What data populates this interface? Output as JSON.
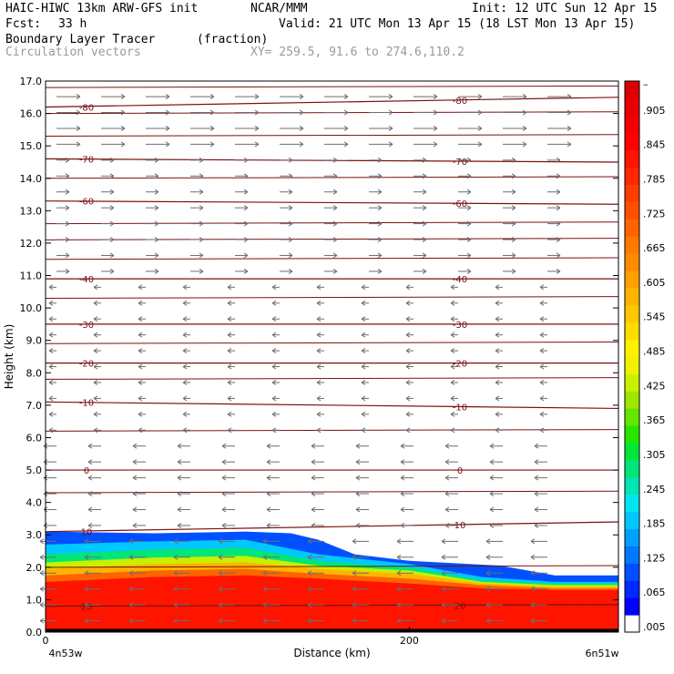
{
  "header": {
    "model_title": "HAIC-HIWC 13km ARW-GFS init",
    "org": "NCAR/MMM",
    "init": "Init: 12 UTC Sun 12 Apr 15",
    "fcst_label": "Fcst:",
    "fcst_value": "33 h",
    "valid": "Valid: 21 UTC Mon 13 Apr 15 (18 LST Mon 13 Apr 15)",
    "field_name": "Boundary Layer Tracer",
    "field_unit": "(fraction)",
    "vector_name": "Circulation vectors",
    "xy_range": "XY= 259.5, 91.6 to 274.6,110.2"
  },
  "chart_data": {
    "type": "heatmap",
    "xlabel": "Distance (km)",
    "ylabel": "Height (km)",
    "xlim": [
      0,
      315
    ],
    "ylim": [
      0,
      17
    ],
    "x_ticks": [
      0,
      200
    ],
    "x_tick_labels": [
      "0",
      "200"
    ],
    "x_end_labels": [
      "4n53w",
      "6n51w"
    ],
    "y_ticks": [
      0,
      1,
      2,
      3,
      4,
      5,
      6,
      7,
      8,
      9,
      10,
      11,
      12,
      13,
      14,
      15,
      16,
      17
    ],
    "y_tick_labels": [
      "0.0",
      "1.0",
      "2.0",
      "3.0",
      "4.0",
      "5.0",
      "6.0",
      "7.0",
      "8.0",
      "9.0",
      "10.0",
      "11.0",
      "12.0",
      "13.0",
      "14.0",
      "15.0",
      "16.0",
      "17.0"
    ],
    "colorbar": {
      "levels": [
        0.005,
        0.035,
        0.065,
        0.095,
        0.125,
        0.155,
        0.185,
        0.215,
        0.245,
        0.275,
        0.305,
        0.335,
        0.365,
        0.395,
        0.425,
        0.455,
        0.485,
        0.515,
        0.545,
        0.575,
        0.605,
        0.635,
        0.665,
        0.695,
        0.725,
        0.755,
        0.785,
        0.815,
        0.845,
        0.875,
        0.905,
        0.935,
        0.965
      ],
      "labels": [
        ".005",
        ".065",
        ".125",
        ".185",
        ".245",
        ".305",
        ".365",
        ".425",
        ".485",
        ".545",
        ".605",
        ".665",
        ".725",
        ".785",
        ".845",
        ".905",
        "–"
      ],
      "colors": [
        "#ffffff",
        "#0000ff",
        "#0028ff",
        "#0050ff",
        "#0078ff",
        "#00a0ff",
        "#00c8ff",
        "#00e6f0",
        "#00e6b4",
        "#00e678",
        "#00e63c",
        "#28e600",
        "#64e600",
        "#a0e600",
        "#c8f000",
        "#f0f000",
        "#fff000",
        "#ffdc00",
        "#ffc800",
        "#ffb400",
        "#ffa000",
        "#ff8c00",
        "#ff7800",
        "#ff6400",
        "#ff5000",
        "#ff3c00",
        "#ff2800",
        "#ff1400",
        "#ff0000",
        "#f00000",
        "#e60000",
        "#dc0000"
      ]
    },
    "tracer_bands": [
      {
        "min": 0.9,
        "color": "#ff1400",
        "top": [
          [
            0,
            1.55
          ],
          [
            60,
            1.7
          ],
          [
            110,
            1.75
          ],
          [
            150,
            1.65
          ],
          [
            200,
            1.5
          ],
          [
            240,
            1.35
          ],
          [
            280,
            1.3
          ],
          [
            315,
            1.3
          ]
        ]
      },
      {
        "min": 0.75,
        "color": "#ff6400",
        "top": [
          [
            0,
            1.75
          ],
          [
            60,
            1.9
          ],
          [
            110,
            1.95
          ],
          [
            150,
            1.8
          ],
          [
            200,
            1.65
          ],
          [
            240,
            1.45
          ],
          [
            280,
            1.35
          ],
          [
            315,
            1.35
          ]
        ]
      },
      {
        "min": 0.6,
        "color": "#ffb400",
        "top": [
          [
            0,
            1.95
          ],
          [
            60,
            2.1
          ],
          [
            110,
            2.15
          ],
          [
            150,
            1.95
          ],
          [
            200,
            1.8
          ],
          [
            240,
            1.5
          ],
          [
            280,
            1.4
          ],
          [
            315,
            1.4
          ]
        ]
      },
      {
        "min": 0.45,
        "color": "#c8f000",
        "top": [
          [
            0,
            2.15
          ],
          [
            60,
            2.3
          ],
          [
            110,
            2.35
          ],
          [
            150,
            2.05
          ],
          [
            200,
            1.9
          ],
          [
            240,
            1.55
          ],
          [
            280,
            1.45
          ],
          [
            315,
            1.45
          ]
        ]
      },
      {
        "min": 0.3,
        "color": "#00e678",
        "top": [
          [
            0,
            2.4
          ],
          [
            60,
            2.55
          ],
          [
            110,
            2.6
          ],
          [
            150,
            2.2
          ],
          [
            200,
            2.0
          ],
          [
            240,
            1.6
          ],
          [
            280,
            1.5
          ],
          [
            315,
            1.5
          ]
        ]
      },
      {
        "min": 0.15,
        "color": "#00c8ff",
        "top": [
          [
            0,
            2.7
          ],
          [
            60,
            2.8
          ],
          [
            110,
            2.85
          ],
          [
            150,
            2.4
          ],
          [
            200,
            2.1
          ],
          [
            240,
            1.7
          ],
          [
            280,
            1.55
          ],
          [
            315,
            1.55
          ]
        ]
      },
      {
        "min": 0.035,
        "color": "#0050ff",
        "top": [
          [
            0,
            3.1
          ],
          [
            60,
            3.05
          ],
          [
            110,
            3.1
          ],
          [
            135,
            3.05
          ],
          [
            150,
            2.85
          ],
          [
            170,
            2.4
          ],
          [
            200,
            2.2
          ],
          [
            250,
            2.05
          ],
          [
            280,
            1.75
          ],
          [
            315,
            1.75
          ]
        ]
      }
    ],
    "theta_contours": [
      {
        "value": -80,
        "label": "-80",
        "y0": 16.2,
        "y1": 16.5
      },
      {
        "value": -70,
        "label": "-70",
        "y0": 14.6,
        "y1": 14.5
      },
      {
        "value": -60,
        "label": "-60",
        "y0": 13.3,
        "y1": 13.2
      },
      {
        "value": -40,
        "label": "-40",
        "y0": 10.9,
        "y1": 10.9
      },
      {
        "value": -30,
        "label": "-30",
        "y0": 9.5,
        "y1": 9.5
      },
      {
        "value": -20,
        "label": "-20",
        "y0": 8.3,
        "y1": 8.3
      },
      {
        "value": -10,
        "label": "-10",
        "y0": 7.1,
        "y1": 6.9
      },
      {
        "value": 0,
        "label": "0",
        "y0": 5.0,
        "y1": 5.0
      },
      {
        "value": 10,
        "label": "10",
        "y0": 3.1,
        "y1": 3.4
      },
      {
        "value": 20,
        "label": "20",
        "y0": 0.8,
        "y1": 0.85
      }
    ],
    "contour_lines_unlabeled": [
      16.8,
      16.0,
      15.3,
      14.0,
      12.6,
      12.1,
      11.5,
      10.3,
      8.9,
      7.8,
      6.2,
      4.3,
      2.0
    ]
  }
}
